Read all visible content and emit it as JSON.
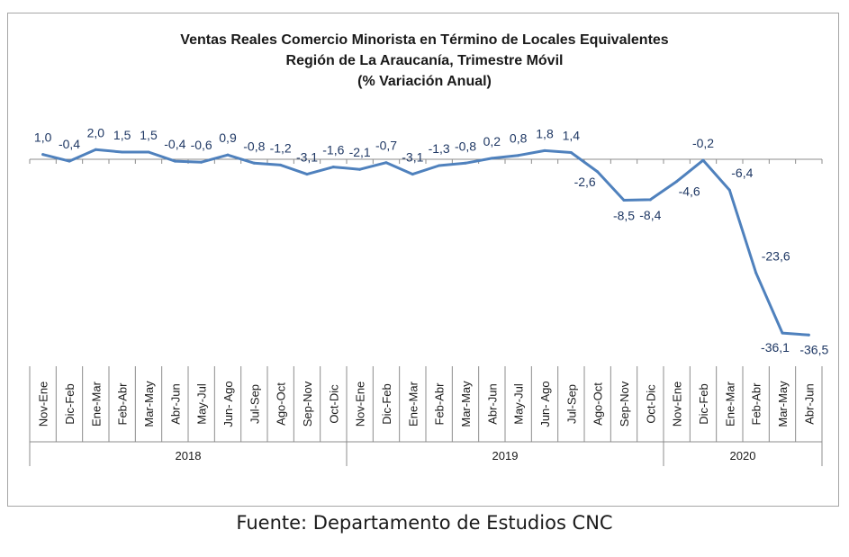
{
  "source_note": "Fuente: Departamento de Estudios CNC",
  "chart_data": {
    "type": "line",
    "title_lines": [
      "Ventas Reales Comercio Minorista  en Término de Locales Equivalentes",
      "Región de La Araucanía, Trimestre Móvil",
      "(% Variación Anual)"
    ],
    "categories": [
      "Nov-Ene",
      "Dic-Feb",
      "Ene-Mar",
      "Feb-Abr",
      "Mar-May",
      "Abr-Jun",
      "May-Jul",
      "Jun- Ago",
      "Jul-Sep",
      "Ago-Oct",
      "Sep-Nov",
      "Oct-Dic",
      "Nov-Ene",
      "Dic-Feb",
      "Ene-Mar",
      "Feb-Abr",
      "Mar-May",
      "Abr-Jun",
      "May-Jul",
      "Jun- Ago",
      "Jul-Sep",
      "Ago-Oct",
      "Sep-Nov",
      "Oct-Dic",
      "Nov-Ene",
      "Dic-Feb",
      "Ene-Mar",
      "Feb-Abr",
      "Mar-May",
      "Abr-Jun"
    ],
    "groups": [
      {
        "label": "2018",
        "count": 12
      },
      {
        "label": "2019",
        "count": 12
      },
      {
        "label": "2020",
        "count": 6
      }
    ],
    "values": [
      1.0,
      -0.4,
      2.0,
      1.5,
      1.5,
      -0.4,
      -0.6,
      0.9,
      -0.8,
      -1.2,
      -3.1,
      -1.6,
      -2.1,
      -0.7,
      -3.1,
      -1.3,
      -0.8,
      0.2,
      0.8,
      1.8,
      1.4,
      -2.6,
      -8.5,
      -8.4,
      -4.6,
      -0.2,
      -6.4,
      -23.6,
      -36.1,
      -36.5
    ],
    "data_labels": [
      "1,0",
      "-0,4",
      "2,0",
      "1,5",
      "1,5",
      "-0,4",
      "-0,6",
      "0,9",
      "-0,8",
      "-1,2",
      "-3,1",
      "-1,6",
      "-2,1",
      "-0,7",
      "-3,1",
      "-1,3",
      "-0,8",
      "0,2",
      "0,8",
      "1,8",
      "1,4",
      "-2,6",
      "-8,5",
      "-8,4",
      "-4,6",
      "-0,2",
      "-6,4",
      "-23,6",
      "-36,1",
      "-36,5"
    ],
    "ylim": [
      -40,
      4
    ],
    "line_color": "#4f81bd",
    "label_color": "#1f3864",
    "grid": false,
    "legend": "none"
  }
}
